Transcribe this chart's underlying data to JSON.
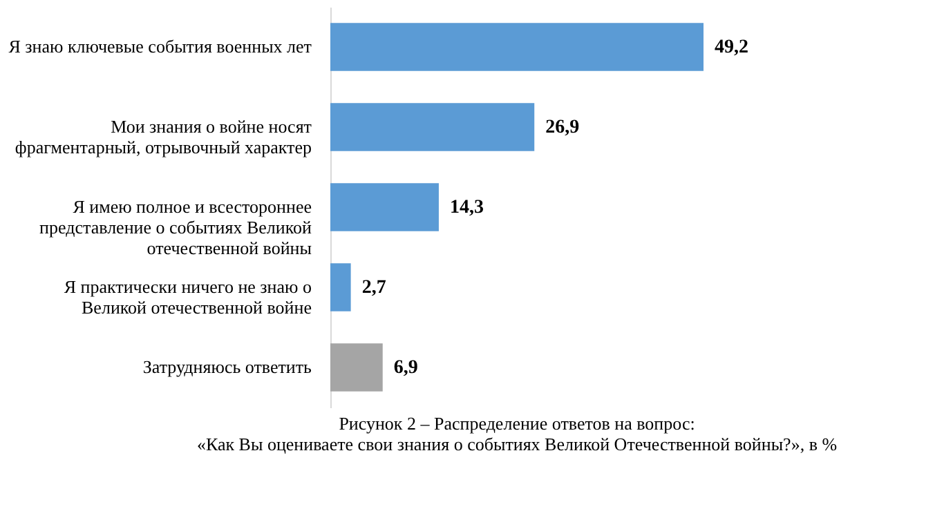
{
  "chart_data": {
    "type": "bar",
    "orientation": "horizontal",
    "title": "Рисунок 2 – Распределение ответов на вопрос: «Как Вы оцениваете свои знания о событиях Великой Отечественной войны?», в %",
    "categories": [
      "Я знаю ключевые события военных лет",
      "Мои знания о войне носят фрагментарный, отрывочный характер",
      "Я имею полное и всестороннее представление о событиях Великой отечественной войны",
      "Я практически ничего не знаю о Великой отечественной войне",
      "Затрудняюсь ответить"
    ],
    "values": [
      49.2,
      26.9,
      14.3,
      2.7,
      6.9
    ],
    "colors": [
      "#5b9bd5",
      "#5b9bd5",
      "#5b9bd5",
      "#5b9bd5",
      "#a5a5a5"
    ],
    "value_labels": [
      "49,2",
      "26,9",
      "14,3",
      "2,7",
      "6,9"
    ],
    "grid": false
  }
}
